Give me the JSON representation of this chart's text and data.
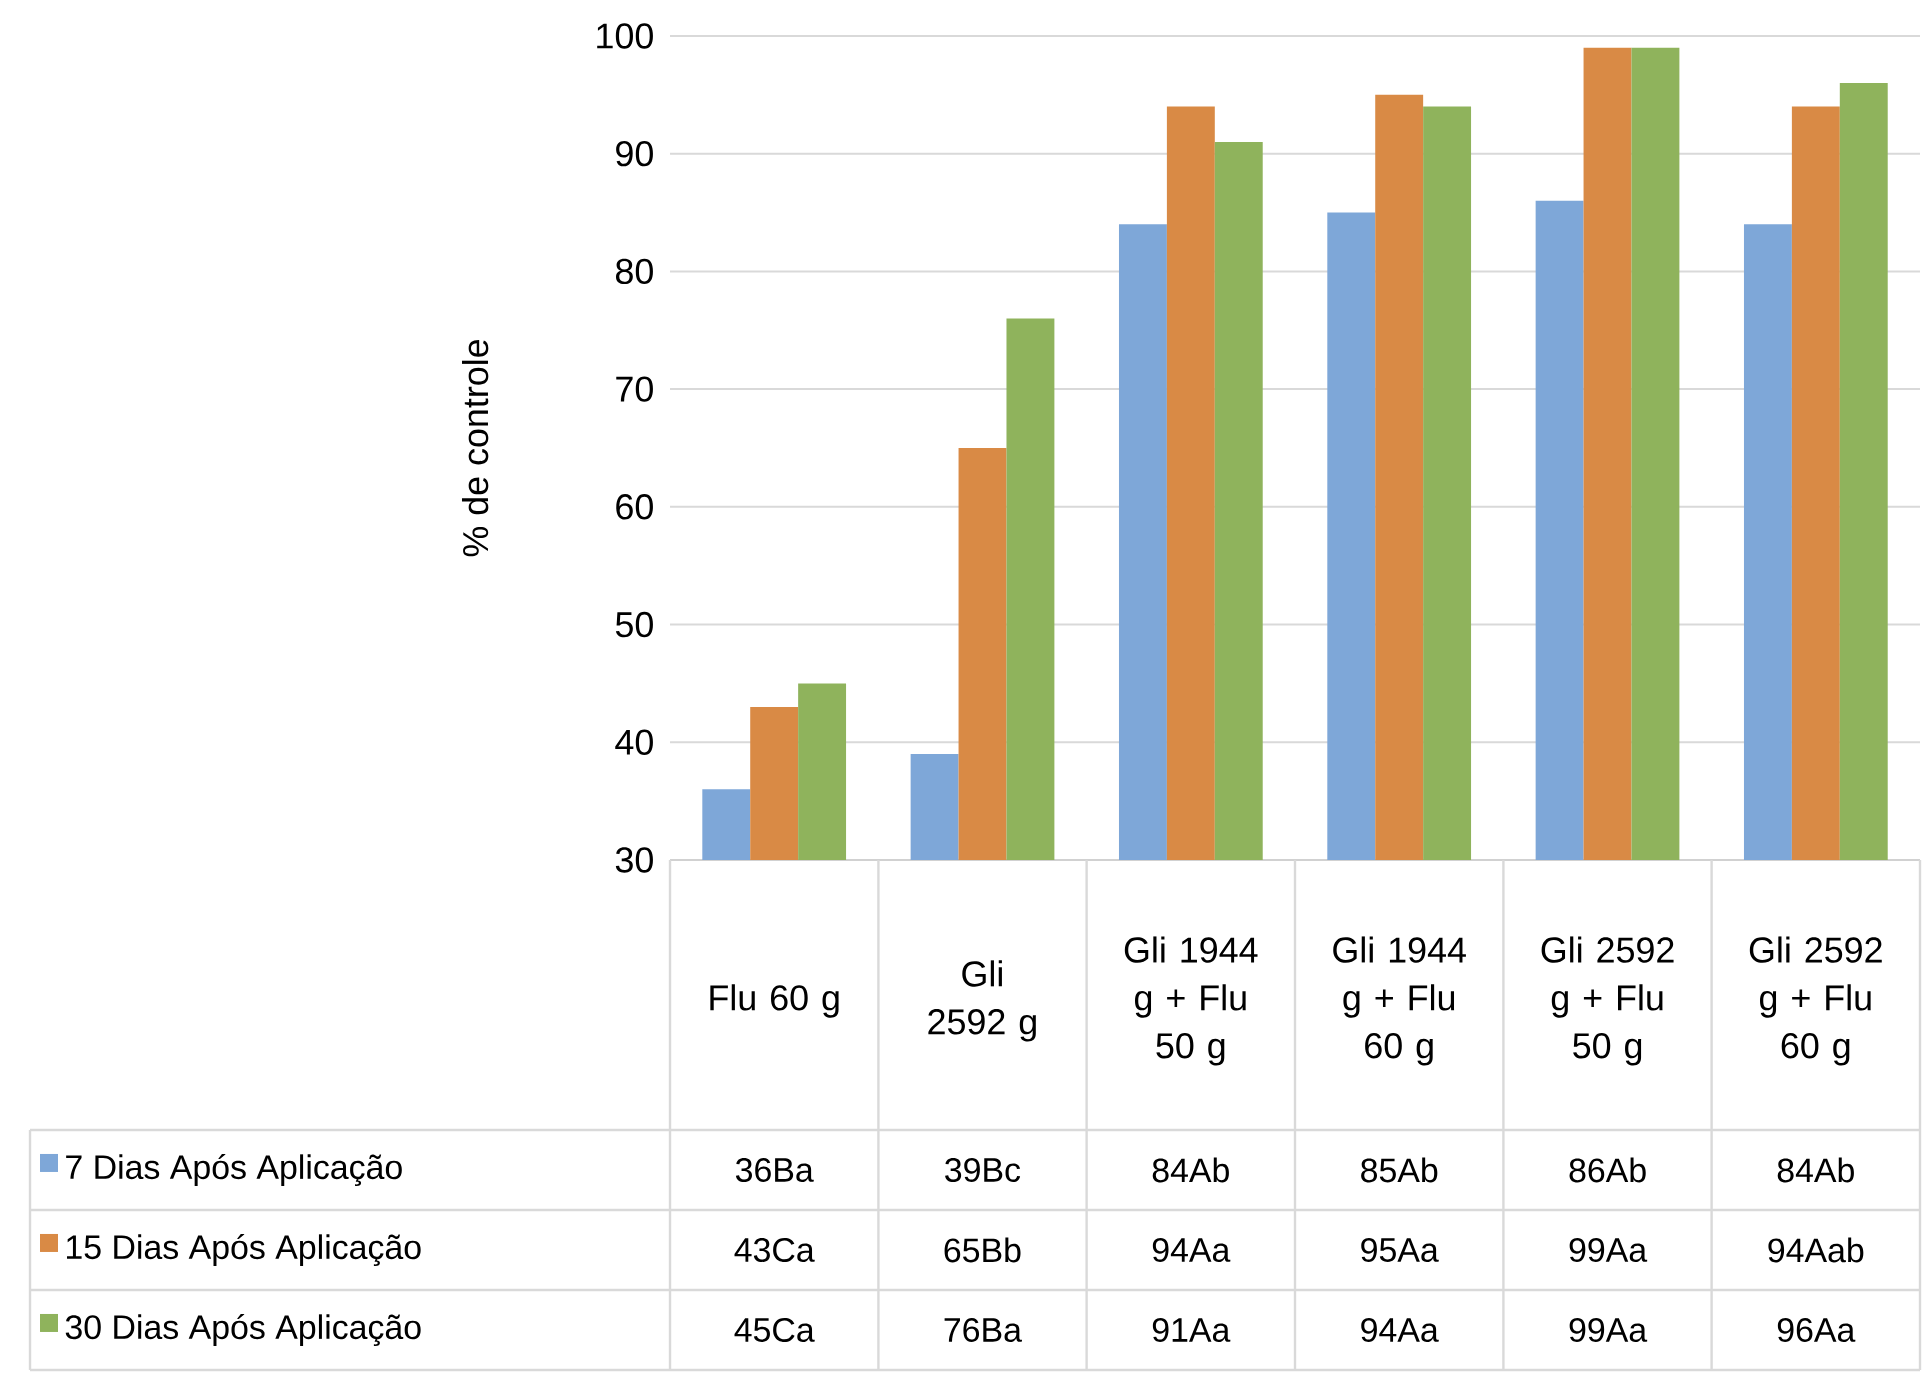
{
  "chart_data": {
    "type": "bar",
    "ylabel": "% de controle",
    "categories": [
      "Flu 60 g",
      "Gli 2592 g",
      "Gli 1944 g + Flu 50 g",
      "Gli 1944 g + Flu 60 g",
      "Gli 2592 g + Flu 50 g",
      "Gli 2592 g + Flu 60 g"
    ],
    "series": [
      {
        "name": "7 Dias Após Aplicação",
        "color": "#7ea7d8",
        "values": [
          36,
          39,
          84,
          85,
          86,
          84
        ],
        "value_labels": [
          "36Ba",
          "39Bc",
          "84Ab",
          "85Ab",
          "86Ab",
          "84Ab"
        ]
      },
      {
        "name": "15 Dias Após Aplicação",
        "color": "#d98a45",
        "values": [
          43,
          65,
          94,
          95,
          99,
          94
        ],
        "value_labels": [
          "43Ca",
          "65Bb",
          "94Aa",
          "95Aa",
          "99Aa",
          "94Aab"
        ]
      },
      {
        "name": "30 Dias Após Aplicação",
        "color": "#8fb35c",
        "values": [
          45,
          76,
          91,
          94,
          99,
          96
        ],
        "value_labels": [
          "45Ca",
          "76Ba",
          "91Aa",
          "94Aa",
          "99Aa",
          "96Aa"
        ]
      }
    ],
    "ylim": [
      30,
      100
    ],
    "yticks": [
      30,
      40,
      50,
      60,
      70,
      80,
      90,
      100
    ],
    "grid": "y",
    "legend": "bottom"
  }
}
